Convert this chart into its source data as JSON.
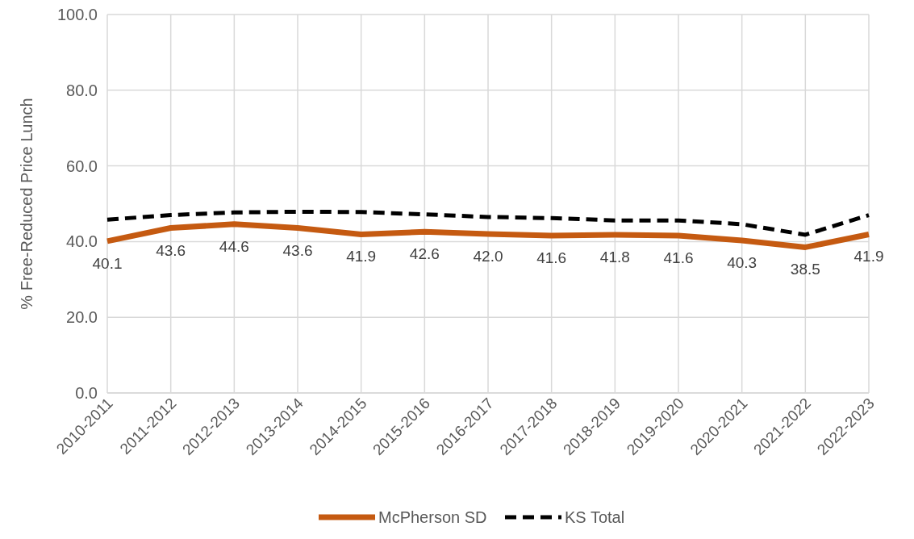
{
  "chart_data": {
    "type": "line",
    "ylabel": "% Free-Reduced Price Lunch",
    "categories": [
      "2010-2011",
      "2011-2012",
      "2012-2013",
      "2013-2014",
      "2014-2015",
      "2015-2016",
      "2016-2017",
      "2017-2018",
      "2018-2019",
      "2019-2020",
      "2020-2021",
      "2021-2022",
      "2022-2023"
    ],
    "series": [
      {
        "name": "McPherson SD",
        "color": "#c55a11",
        "line_style": "solid",
        "values": [
          40.1,
          43.6,
          44.6,
          43.6,
          41.9,
          42.6,
          42.0,
          41.6,
          41.8,
          41.6,
          40.3,
          38.5,
          41.9
        ],
        "value_labels": [
          "40.1",
          "43.6",
          "44.6",
          "43.6",
          "41.9",
          "42.6",
          "42.0",
          "41.6",
          "41.8",
          "41.6",
          "40.3",
          "38.5",
          "41.9"
        ]
      },
      {
        "name": "KS Total",
        "color": "#000000",
        "line_style": "dashed",
        "values": [
          45.8,
          47.0,
          47.7,
          47.9,
          47.8,
          47.2,
          46.5,
          46.2,
          45.6,
          45.6,
          44.6,
          41.8,
          47.0
        ]
      }
    ],
    "ylim": [
      0,
      100
    ],
    "yticks": [
      {
        "value": 0,
        "label": "0.0"
      },
      {
        "value": 20,
        "label": "20.0"
      },
      {
        "value": 40,
        "label": "40.0"
      },
      {
        "value": 60,
        "label": "60.0"
      },
      {
        "value": 80,
        "label": "80.0"
      },
      {
        "value": 100,
        "label": "100.0"
      }
    ],
    "grid": true,
    "legend": "bottom"
  }
}
